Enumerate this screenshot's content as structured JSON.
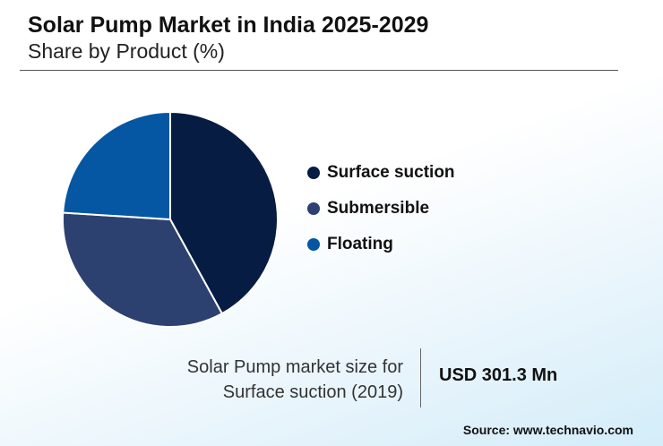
{
  "title": "Solar Pump Market in India 2025-2029",
  "subtitle": "Share by Product (%)",
  "chart_data": {
    "type": "pie",
    "categories": [
      "Surface suction",
      "Submersible",
      "Floating"
    ],
    "values": [
      42,
      34,
      24
    ],
    "colors": [
      "#071c42",
      "#2c4170",
      "#0556a3"
    ],
    "legend_placement": "right"
  },
  "stat": {
    "label_line1": "Solar Pump market size for",
    "label_line2": "Surface suction (2019)",
    "value": "USD 301.3 Mn"
  },
  "source": "Source: www.technavio.com"
}
